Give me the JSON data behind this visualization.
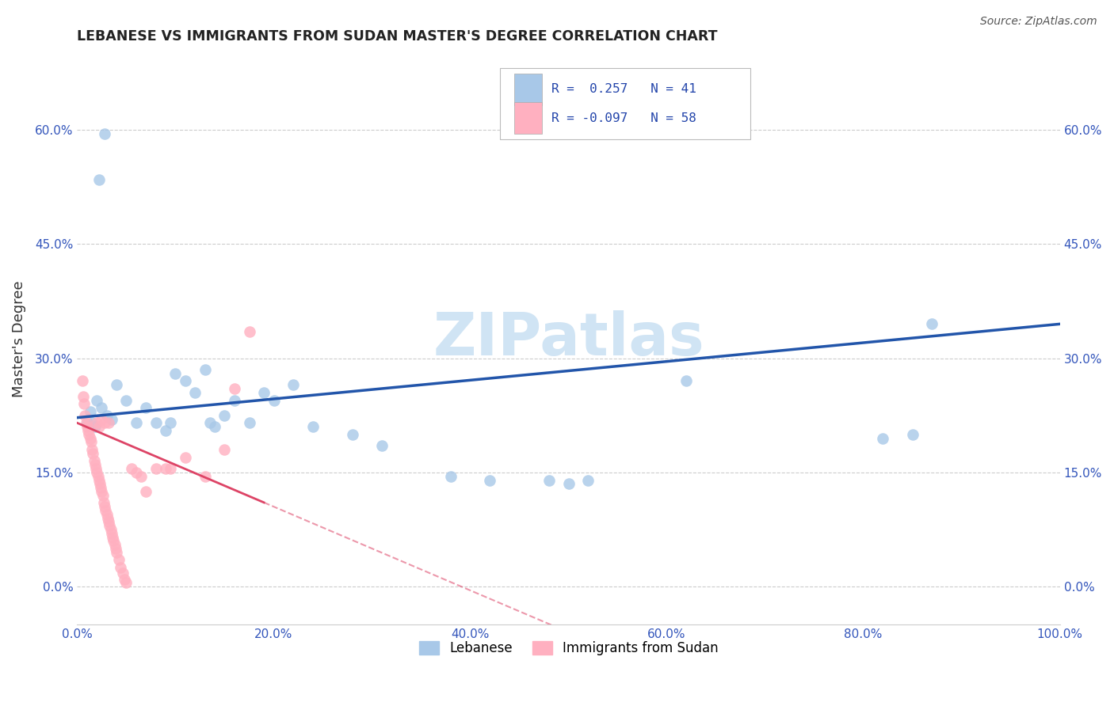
{
  "title": "LEBANESE VS IMMIGRANTS FROM SUDAN MASTER'S DEGREE CORRELATION CHART",
  "source": "Source: ZipAtlas.com",
  "ylabel": "Master's Degree",
  "xlim": [
    0,
    1.0
  ],
  "ylim": [
    -0.05,
    0.7
  ],
  "xticks": [
    0.0,
    0.2,
    0.4,
    0.6,
    0.8,
    1.0
  ],
  "xtick_labels": [
    "0.0%",
    "20.0%",
    "40.0%",
    "60.0%",
    "80.0%",
    "100.0%"
  ],
  "yticks": [
    0.0,
    0.15,
    0.3,
    0.45,
    0.6
  ],
  "ytick_labels": [
    "0.0%",
    "15.0%",
    "30.0%",
    "45.0%",
    "60.0%"
  ],
  "blue_color": "#A8C8E8",
  "pink_color": "#FFB0C0",
  "blue_line_color": "#2255AA",
  "pink_line_color": "#DD4466",
  "watermark_color": "#D0E4F4",
  "legend_label_blue": "Lebanese",
  "legend_label_pink": "Immigrants from Sudan",
  "legend_R_blue": "0.257",
  "legend_N_blue": "41",
  "legend_R_pink": "-0.097",
  "legend_N_pink": "58",
  "blue_points_x": [
    0.028,
    0.022,
    0.01,
    0.013,
    0.015,
    0.018,
    0.02,
    0.025,
    0.03,
    0.035,
    0.04,
    0.05,
    0.06,
    0.07,
    0.08,
    0.09,
    0.095,
    0.1,
    0.11,
    0.12,
    0.13,
    0.135,
    0.14,
    0.15,
    0.16,
    0.175,
    0.19,
    0.2,
    0.22,
    0.24,
    0.28,
    0.31,
    0.38,
    0.42,
    0.48,
    0.5,
    0.52,
    0.62,
    0.82,
    0.85,
    0.87
  ],
  "blue_points_y": [
    0.595,
    0.535,
    0.215,
    0.23,
    0.215,
    0.21,
    0.245,
    0.235,
    0.225,
    0.22,
    0.265,
    0.245,
    0.215,
    0.235,
    0.215,
    0.205,
    0.215,
    0.28,
    0.27,
    0.255,
    0.285,
    0.215,
    0.21,
    0.225,
    0.245,
    0.215,
    0.255,
    0.245,
    0.265,
    0.21,
    0.2,
    0.185,
    0.145,
    0.14,
    0.14,
    0.135,
    0.14,
    0.27,
    0.195,
    0.2,
    0.345
  ],
  "pink_points_x": [
    0.005,
    0.006,
    0.007,
    0.008,
    0.009,
    0.01,
    0.011,
    0.012,
    0.013,
    0.014,
    0.015,
    0.016,
    0.017,
    0.018,
    0.019,
    0.02,
    0.021,
    0.022,
    0.023,
    0.024,
    0.025,
    0.026,
    0.027,
    0.028,
    0.029,
    0.03,
    0.031,
    0.032,
    0.033,
    0.034,
    0.035,
    0.036,
    0.037,
    0.038,
    0.039,
    0.04,
    0.042,
    0.044,
    0.046,
    0.048,
    0.05,
    0.055,
    0.06,
    0.065,
    0.07,
    0.08,
    0.09,
    0.095,
    0.11,
    0.13,
    0.15,
    0.16,
    0.175,
    0.02,
    0.022,
    0.025,
    0.028,
    0.032
  ],
  "pink_points_y": [
    0.27,
    0.25,
    0.24,
    0.225,
    0.215,
    0.21,
    0.205,
    0.2,
    0.195,
    0.19,
    0.18,
    0.175,
    0.165,
    0.16,
    0.155,
    0.15,
    0.145,
    0.14,
    0.135,
    0.13,
    0.125,
    0.12,
    0.11,
    0.105,
    0.1,
    0.095,
    0.09,
    0.085,
    0.08,
    0.075,
    0.07,
    0.065,
    0.06,
    0.055,
    0.05,
    0.045,
    0.035,
    0.025,
    0.018,
    0.01,
    0.005,
    0.155,
    0.15,
    0.145,
    0.125,
    0.155,
    0.155,
    0.155,
    0.17,
    0.145,
    0.18,
    0.26,
    0.335,
    0.215,
    0.21,
    0.22,
    0.215,
    0.215
  ]
}
